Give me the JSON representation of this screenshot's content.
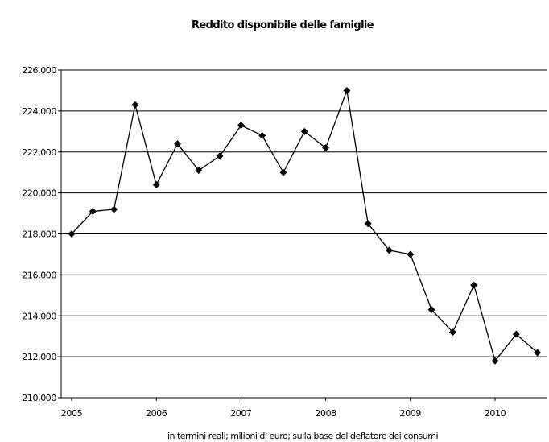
{
  "chart_data": {
    "type": "line",
    "title": "Reddito disponibile delle famiglie",
    "xlabel": "in termini reali; milioni di euro; sulla base del deflatore dei consumi",
    "ylabel": "",
    "ylim": [
      210000,
      226000
    ],
    "yticks": [
      {
        "value": 210000,
        "label": "210,000"
      },
      {
        "value": 212000,
        "label": "212,000"
      },
      {
        "value": 214000,
        "label": "214,000"
      },
      {
        "value": 216000,
        "label": "216,000"
      },
      {
        "value": 218000,
        "label": "218,000"
      },
      {
        "value": 220000,
        "label": "220,000"
      },
      {
        "value": 222000,
        "label": "222,000"
      },
      {
        "value": 224000,
        "label": "224,000"
      },
      {
        "value": 226000,
        "label": "226,000"
      }
    ],
    "xticks": [
      "2005",
      "2006",
      "2007",
      "2008",
      "2009",
      "2010"
    ],
    "grid": "horizontal",
    "legend": "none",
    "series": [
      {
        "values": [
          218000,
          219100,
          219200,
          224300,
          220400,
          222400,
          221100,
          221800,
          223300,
          222800,
          221000,
          223000,
          222200,
          225000,
          218500,
          217200,
          217000,
          214300,
          213200,
          215500,
          211800,
          213100,
          212200
        ]
      }
    ],
    "colors": {
      "line": "#000000",
      "grid": "#000000",
      "background": "#ffffff"
    }
  }
}
